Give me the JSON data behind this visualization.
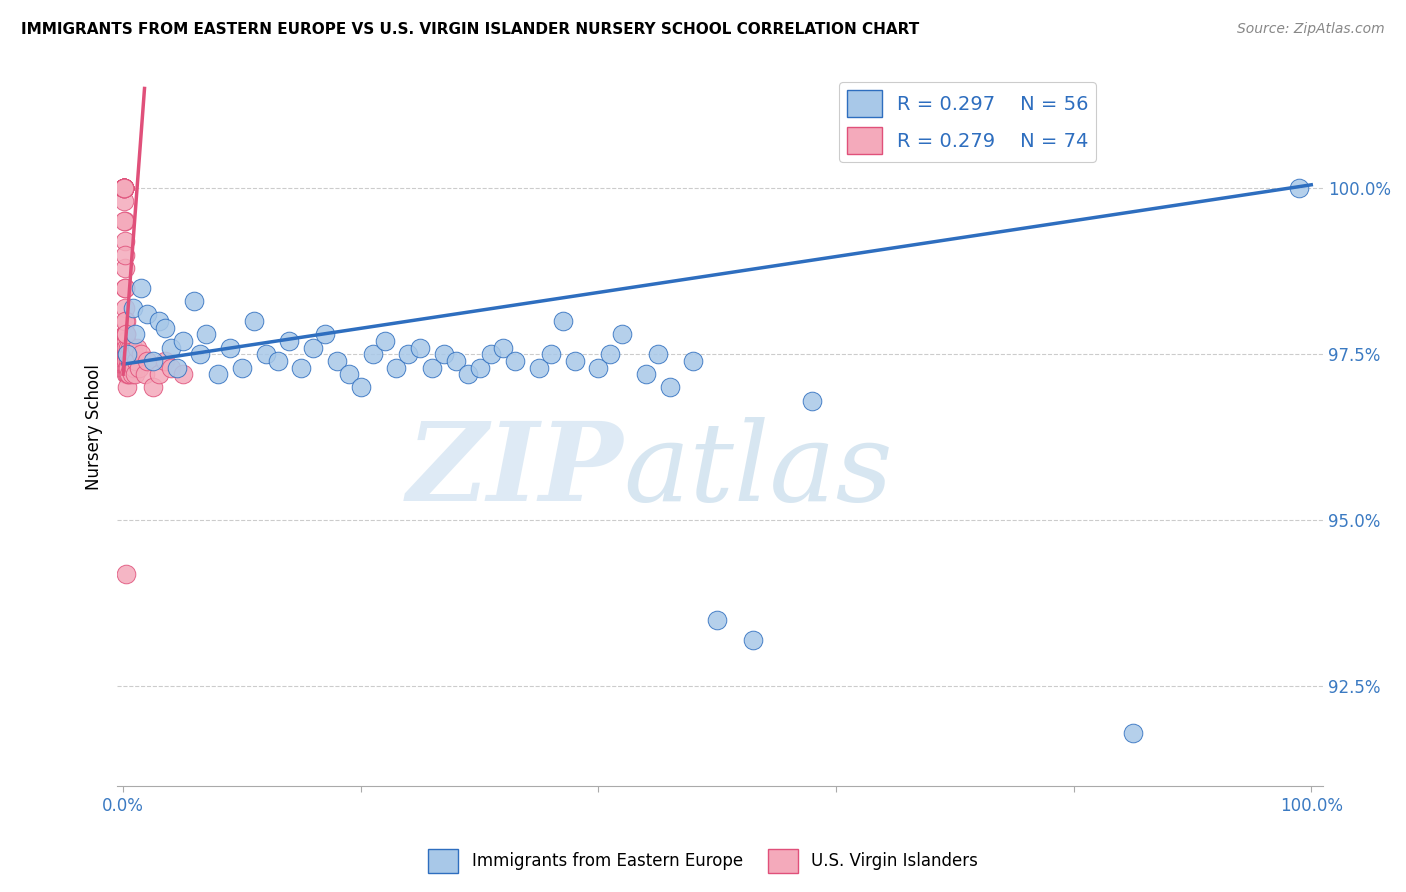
{
  "title": "IMMIGRANTS FROM EASTERN EUROPE VS U.S. VIRGIN ISLANDER NURSERY SCHOOL CORRELATION CHART",
  "source": "Source: ZipAtlas.com",
  "ylabel": "Nursery School",
  "ytick_values": [
    100.0,
    97.5,
    95.0,
    92.5
  ],
  "ymin": 91.0,
  "ymax": 101.8,
  "xmin": -0.5,
  "xmax": 101.0,
  "blue_color": "#A8C8E8",
  "pink_color": "#F4AABB",
  "blue_line_color": "#2E6EBF",
  "pink_line_color": "#E0507A",
  "blue_trend_x": [
    0,
    100
  ],
  "blue_trend_y": [
    97.35,
    100.05
  ],
  "pink_trend_x": [
    0,
    1.8
  ],
  "pink_trend_y": [
    97.2,
    101.5
  ],
  "blue_scatter_x": [
    0.3,
    0.8,
    1.0,
    1.5,
    2.0,
    2.5,
    3.0,
    3.5,
    4.0,
    4.5,
    5.0,
    6.0,
    6.5,
    7.0,
    8.0,
    9.0,
    10.0,
    11.0,
    12.0,
    13.0,
    14.0,
    15.0,
    16.0,
    17.0,
    18.0,
    19.0,
    20.0,
    21.0,
    22.0,
    23.0,
    24.0,
    25.0,
    26.0,
    27.0,
    28.0,
    29.0,
    30.0,
    31.0,
    32.0,
    33.0,
    35.0,
    36.0,
    37.0,
    38.0,
    40.0,
    41.0,
    42.0,
    44.0,
    45.0,
    46.0,
    48.0,
    50.0,
    53.0,
    58.0,
    85.0,
    99.0
  ],
  "blue_scatter_y": [
    97.5,
    98.2,
    97.8,
    98.5,
    98.1,
    97.4,
    98.0,
    97.9,
    97.6,
    97.3,
    97.7,
    98.3,
    97.5,
    97.8,
    97.2,
    97.6,
    97.3,
    98.0,
    97.5,
    97.4,
    97.7,
    97.3,
    97.6,
    97.8,
    97.4,
    97.2,
    97.0,
    97.5,
    97.7,
    97.3,
    97.5,
    97.6,
    97.3,
    97.5,
    97.4,
    97.2,
    97.3,
    97.5,
    97.6,
    97.4,
    97.3,
    97.5,
    98.0,
    97.4,
    97.3,
    97.5,
    97.8,
    97.2,
    97.5,
    97.0,
    97.4,
    93.5,
    93.2,
    96.8,
    91.8,
    100.0
  ],
  "pink_scatter_x": [
    0.05,
    0.05,
    0.05,
    0.07,
    0.07,
    0.07,
    0.08,
    0.08,
    0.09,
    0.09,
    0.1,
    0.1,
    0.1,
    0.1,
    0.12,
    0.12,
    0.13,
    0.14,
    0.15,
    0.15,
    0.16,
    0.17,
    0.18,
    0.2,
    0.2,
    0.2,
    0.22,
    0.23,
    0.25,
    0.25,
    0.27,
    0.28,
    0.3,
    0.3,
    0.32,
    0.33,
    0.35,
    0.38,
    0.4,
    0.42,
    0.45,
    0.48,
    0.5,
    0.55,
    0.6,
    0.65,
    0.7,
    0.75,
    0.8,
    0.85,
    0.9,
    0.95,
    1.0,
    1.1,
    1.2,
    1.3,
    1.5,
    1.8,
    2.0,
    2.5,
    3.0,
    3.5,
    4.0,
    5.0,
    0.06,
    0.06,
    0.08,
    0.09,
    0.1,
    0.12,
    0.14,
    0.18,
    0.22,
    0.28
  ],
  "pink_scatter_y": [
    100.0,
    100.0,
    100.0,
    100.0,
    100.0,
    100.0,
    100.0,
    100.0,
    100.0,
    100.0,
    100.0,
    100.0,
    100.0,
    99.8,
    99.5,
    99.2,
    98.8,
    98.5,
    98.2,
    97.8,
    97.5,
    97.8,
    97.6,
    97.4,
    97.7,
    98.0,
    97.5,
    97.3,
    97.2,
    97.6,
    97.4,
    97.8,
    97.5,
    97.2,
    97.0,
    97.3,
    97.5,
    97.2,
    97.4,
    97.6,
    97.3,
    97.5,
    97.2,
    97.4,
    97.6,
    97.3,
    97.5,
    97.2,
    97.4,
    97.6,
    97.3,
    97.5,
    97.2,
    97.4,
    97.6,
    97.3,
    97.5,
    97.2,
    97.4,
    97.0,
    97.2,
    97.4,
    97.3,
    97.2,
    100.0,
    100.0,
    100.0,
    100.0,
    99.5,
    99.0,
    98.5,
    98.0,
    97.8,
    94.2
  ]
}
